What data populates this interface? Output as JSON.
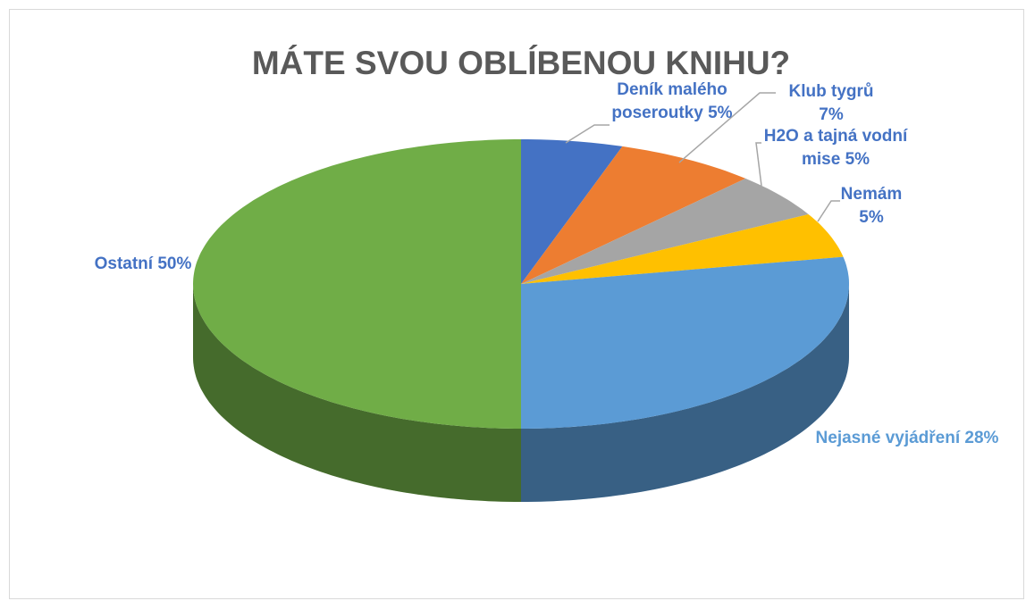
{
  "chart_data": {
    "type": "pie",
    "title": "MÁTE SVOU OBLÍBENOU KNIHU?",
    "categories": [
      "Deník malého poseroutky",
      "Klub tygrů",
      "H2O a tajná vodní mise",
      "Nemám",
      "Nejasné vyjádření",
      "Ostatní"
    ],
    "values": [
      5,
      7,
      5,
      5,
      28,
      50
    ],
    "value_labels": [
      "5%",
      "7%",
      "5%",
      "5%",
      "28%",
      "50%"
    ],
    "colors": [
      "#4472c4",
      "#ed7d31",
      "#a5a5a5",
      "#ffc000",
      "#5b9bd5",
      "#70ad47"
    ]
  }
}
